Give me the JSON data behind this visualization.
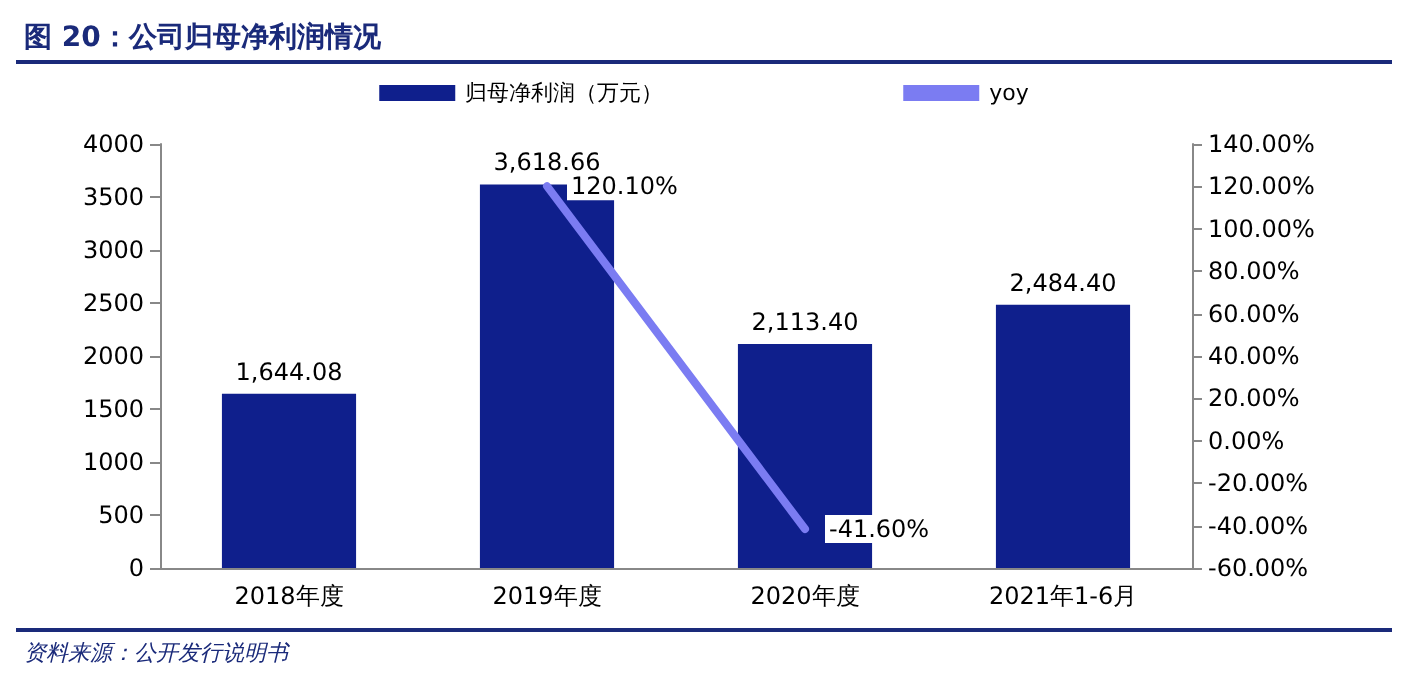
{
  "chart_data": {
    "type": "bar",
    "title": "图 20：公司归母净利润情况",
    "annotations": [
      "资料来源：公开发行说明书"
    ],
    "categories": [
      "2018年度",
      "2019年度",
      "2020年度",
      "2021年1-6月"
    ],
    "series": [
      {
        "name": "归母净利润（万元）",
        "color": "#0f1f8c",
        "values": [
          1644.08,
          3618.66,
          2113.4,
          2484.4
        ],
        "value_labels": [
          "1,644.08",
          "3,618.66",
          "2,113.40",
          "2,484.40"
        ]
      },
      {
        "name": "yoy",
        "type": "line",
        "axis": "y2",
        "color": "#7b7cf2",
        "values": [
          null,
          120.1,
          -41.6,
          null
        ],
        "value_labels": [
          null,
          "120.10%",
          "-41.60%",
          null
        ]
      }
    ],
    "ylim": [
      0,
      4000
    ],
    "yticks": [
      0,
      500,
      1000,
      1500,
      2000,
      2500,
      3000,
      3500,
      4000
    ],
    "y2lim": [
      -60,
      140
    ],
    "y2ticks": [
      {
        "value": -60,
        "label": "-60.00%"
      },
      {
        "value": -40,
        "label": "-40.00%"
      },
      {
        "value": -20,
        "label": "-20.00%"
      },
      {
        "value": 0,
        "label": "0.00%"
      },
      {
        "value": 20,
        "label": "20.00%"
      },
      {
        "value": 40,
        "label": "40.00%"
      },
      {
        "value": 60,
        "label": "60.00%"
      },
      {
        "value": 80,
        "label": "80.00%"
      },
      {
        "value": 100,
        "label": "100.00%"
      },
      {
        "value": 120,
        "label": "120.00%"
      },
      {
        "value": 140,
        "label": "140.00%"
      }
    ],
    "legend": "top",
    "grid": false,
    "marker": "none"
  }
}
